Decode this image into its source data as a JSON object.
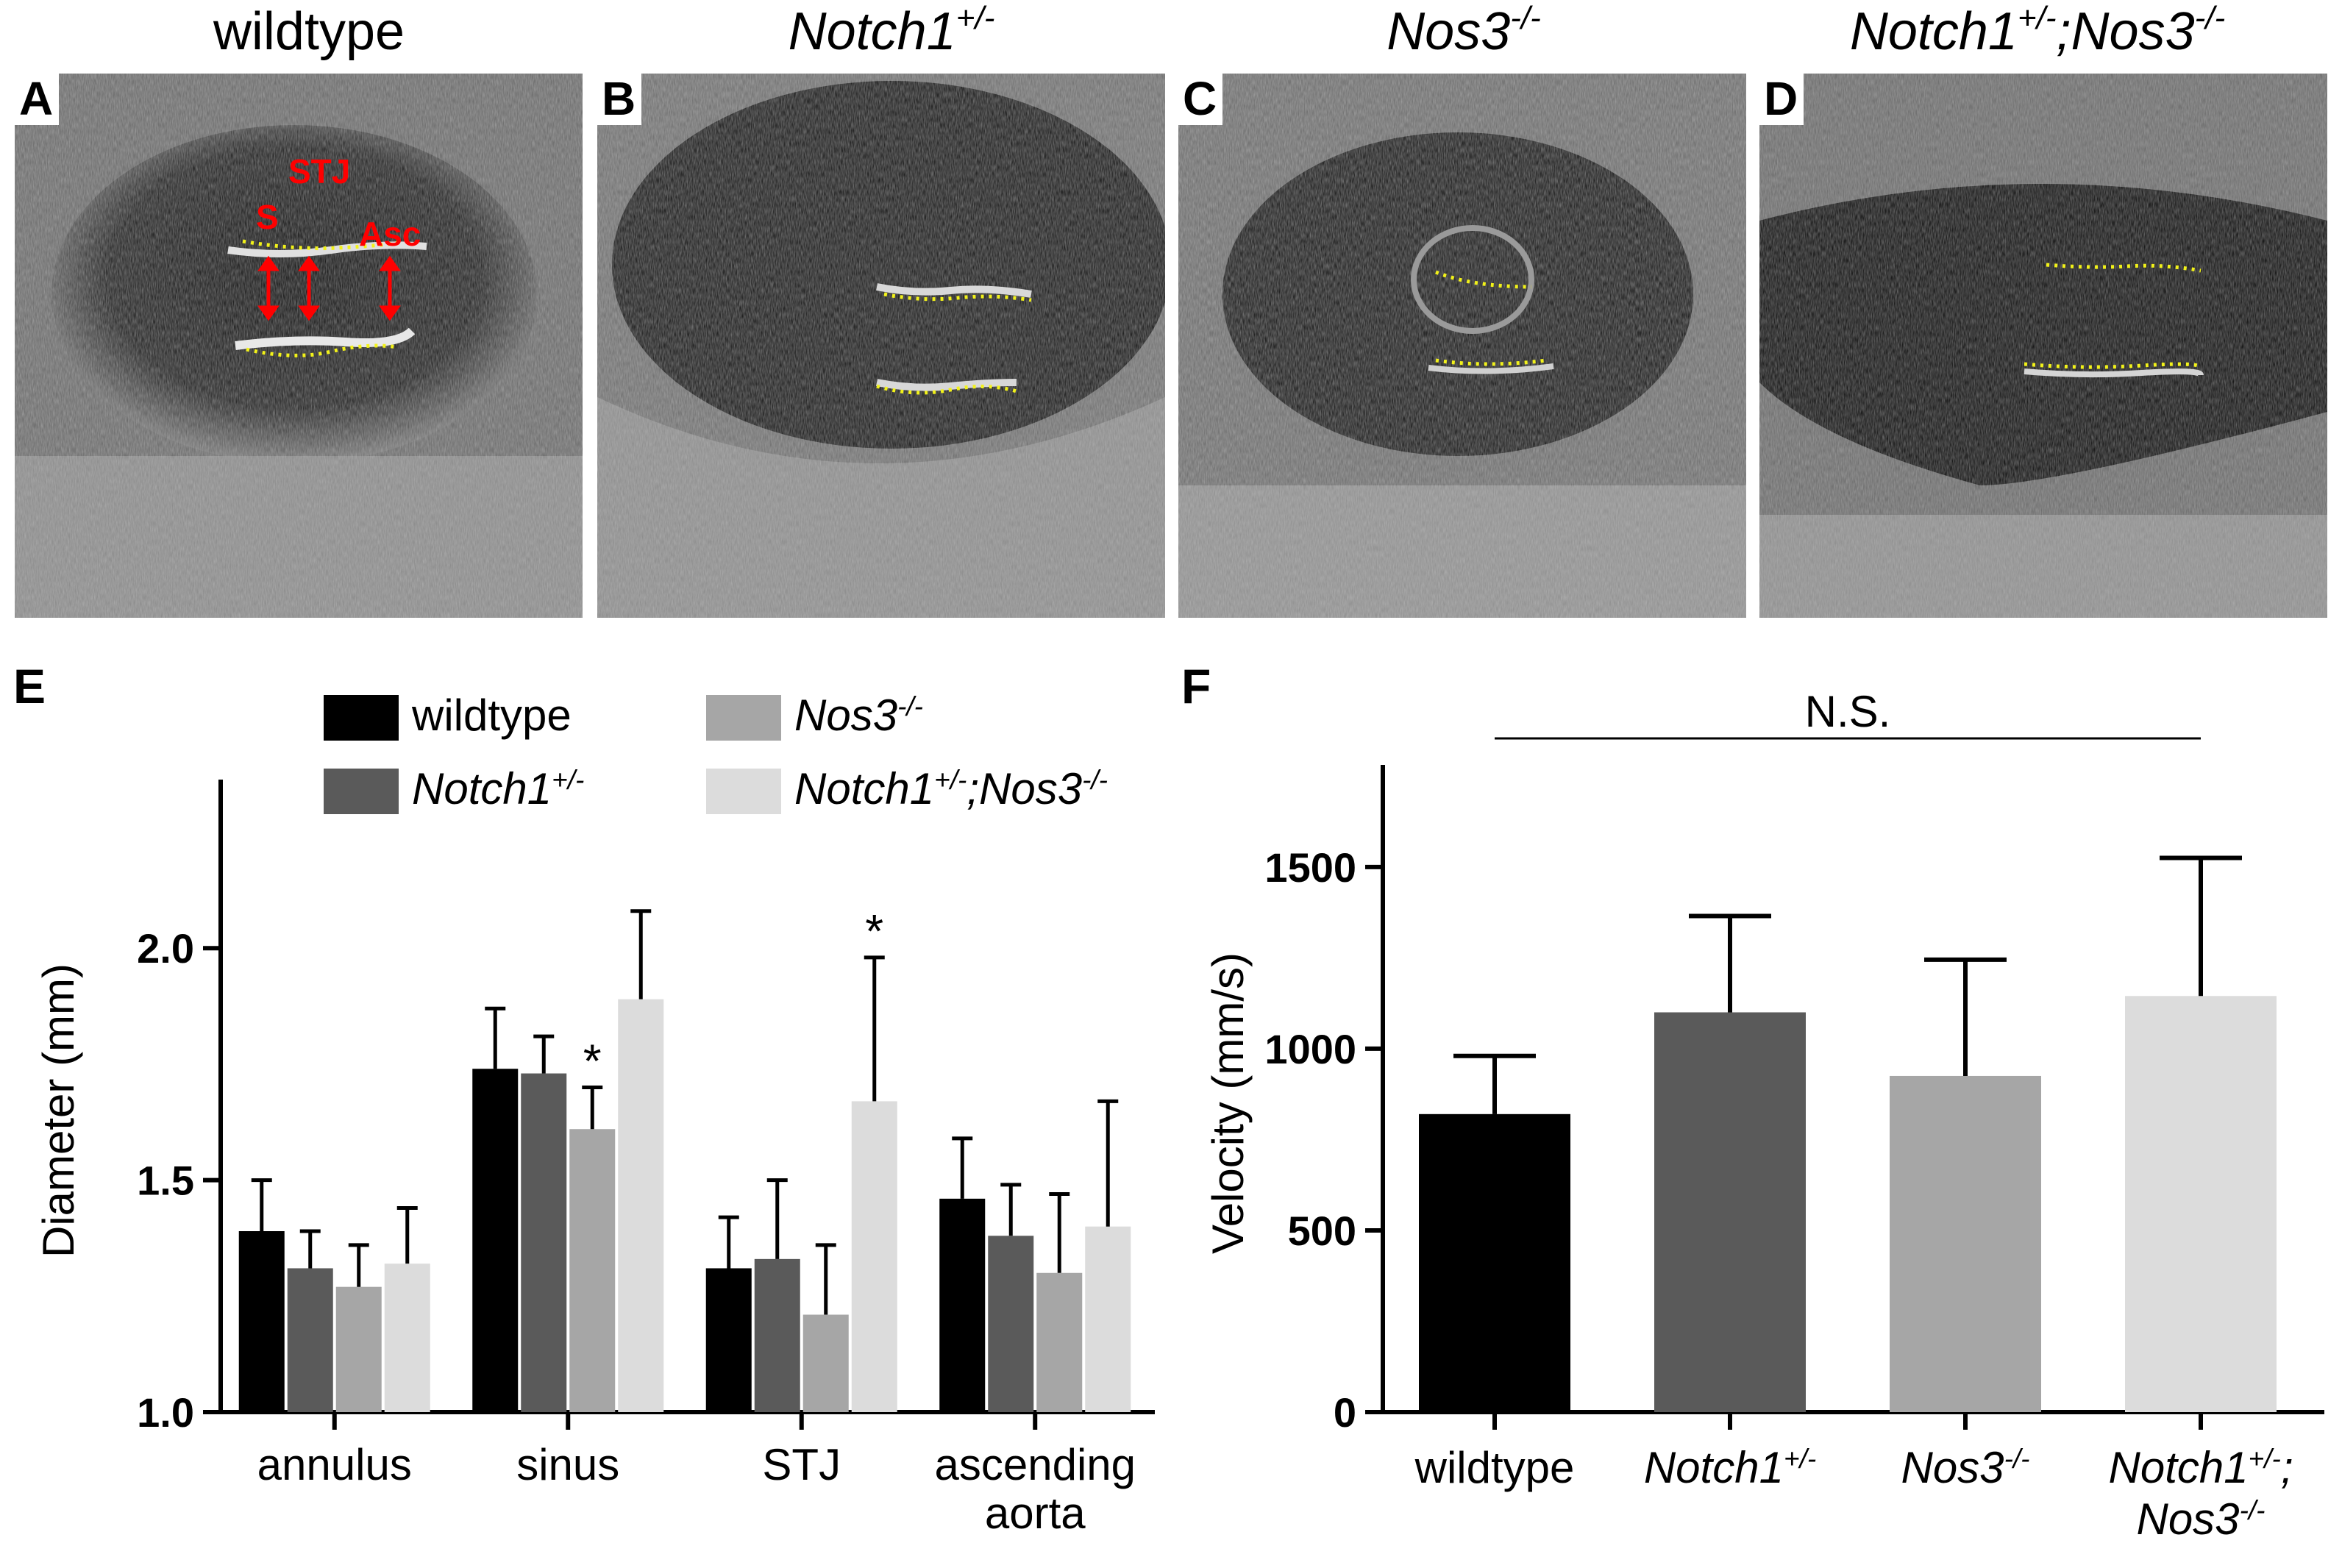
{
  "panels": [
    {
      "letter": "A",
      "title": "wildtype",
      "title_sup": "",
      "title_tail": "",
      "italic": false
    },
    {
      "letter": "B",
      "title": "Notch1",
      "title_sup": "+/-",
      "title_tail": "",
      "italic": true
    },
    {
      "letter": "C",
      "title": "Nos3",
      "title_sup": "-/-",
      "title_tail": "",
      "italic": true
    },
    {
      "letter": "D",
      "title": "Notch1",
      "title_sup": "+/-",
      "title_tail": ";Nos3",
      "tail_sup": "-/-",
      "italic": true
    }
  ],
  "annotations_A": {
    "stj": "STJ",
    "s": "S",
    "asc": "Asc"
  },
  "colors": {
    "wildtype": "#000000",
    "notch1": "#5a5a5a",
    "nos3": "#a6a6a6",
    "double": "#dcdcdc",
    "trace": "#f2f21a",
    "annotation": "#ff0000"
  },
  "chart_data": [
    {
      "panel": "E",
      "type": "bar",
      "ylabel": "Diameter (mm)",
      "ylim": [
        1.0,
        2.3
      ],
      "yticks": [
        "1.0",
        "1.5",
        "2.0"
      ],
      "categories": [
        "annulus",
        "sinus",
        "STJ",
        "ascending aorta"
      ],
      "category_lines": [
        [
          "annulus"
        ],
        [
          "sinus"
        ],
        [
          "STJ"
        ],
        [
          "ascending",
          "aorta"
        ]
      ],
      "series": [
        {
          "name": "wildtype",
          "sup": "",
          "tail": "",
          "tail_sup": "",
          "italic": false,
          "values": [
            1.39,
            1.74,
            1.31,
            1.46
          ],
          "errors": [
            0.11,
            0.13,
            0.11,
            0.13
          ]
        },
        {
          "name": "Notch1",
          "sup": "+/-",
          "tail": "",
          "tail_sup": "",
          "italic": true,
          "values": [
            1.31,
            1.73,
            1.33,
            1.38
          ],
          "errors": [
            0.08,
            0.08,
            0.17,
            0.11
          ]
        },
        {
          "name": "Nos3",
          "sup": "-/-",
          "tail": "",
          "tail_sup": "",
          "italic": true,
          "values": [
            1.27,
            1.61,
            1.21,
            1.3
          ],
          "errors": [
            0.09,
            0.09,
            0.15,
            0.17
          ]
        },
        {
          "name": "Notch1",
          "sup": "+/-",
          "tail": ";Nos3",
          "tail_sup": "-/-",
          "italic": true,
          "values": [
            1.32,
            1.89,
            1.67,
            1.4
          ],
          "errors": [
            0.12,
            0.19,
            0.31,
            0.27
          ]
        }
      ],
      "significance": [
        {
          "category": 1,
          "series": 2,
          "label": "*"
        },
        {
          "category": 2,
          "series": 3,
          "label": "*"
        }
      ],
      "legend": "top"
    },
    {
      "panel": "F",
      "type": "bar",
      "ylabel": "Velocity (mm/s)",
      "ylim": [
        0,
        1700
      ],
      "yticks": [
        "0",
        "500",
        "1000",
        "1500"
      ],
      "categories": [
        {
          "name": "wildtype",
          "sup": "",
          "italic": false
        },
        {
          "name": "Notch1",
          "sup": "+/-",
          "italic": true
        },
        {
          "name": "Nos3",
          "sup": "-/-",
          "italic": true
        },
        {
          "name": "Notch1",
          "sup": "+/-",
          "name2": "Nos3",
          "sup2": "-/-",
          "italic": true
        }
      ],
      "values": [
        820,
        1100,
        925,
        1145
      ],
      "errors": [
        160,
        265,
        320,
        380
      ],
      "bracket_label": "N.S."
    }
  ]
}
